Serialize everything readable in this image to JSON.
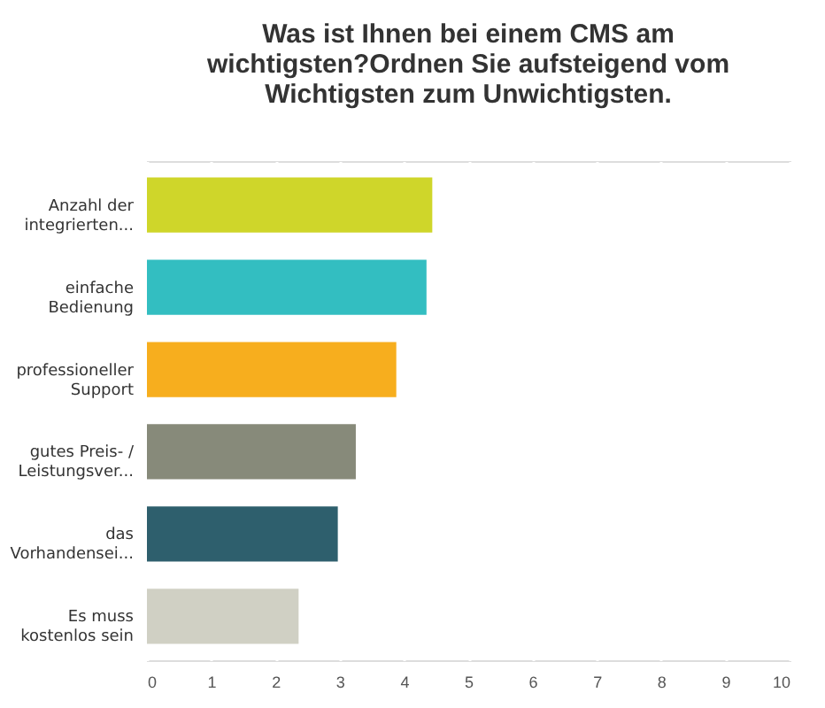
{
  "chart_data": {
    "type": "bar",
    "orientation": "horizontal",
    "title": [
      "Was ist Ihnen bei einem CMS am",
      "wichtigsten?Ordnen Sie aufsteigend vom",
      "Wichtigsten zum Unwichtigsten."
    ],
    "categories": [
      "Anzahl der\nintegrierten...",
      "einfache\nBedienung",
      "professioneller\nSupport",
      "gutes Preis- /\nLeistungsver...",
      "das\nVorhandensei...",
      "Es muss\nkostenlos sein"
    ],
    "values": [
      4.44,
      4.35,
      3.88,
      3.25,
      2.97,
      2.36
    ],
    "colors": [
      "#cfd62a",
      "#33bec1",
      "#f7ae1e",
      "#878a7a",
      "#2e5f6d",
      "#d0d0c4"
    ],
    "xlim": [
      0,
      10
    ],
    "xticks": [
      0,
      1,
      2,
      3,
      4,
      5,
      6,
      7,
      8,
      9,
      10
    ],
    "grid": "x",
    "legend": false
  }
}
